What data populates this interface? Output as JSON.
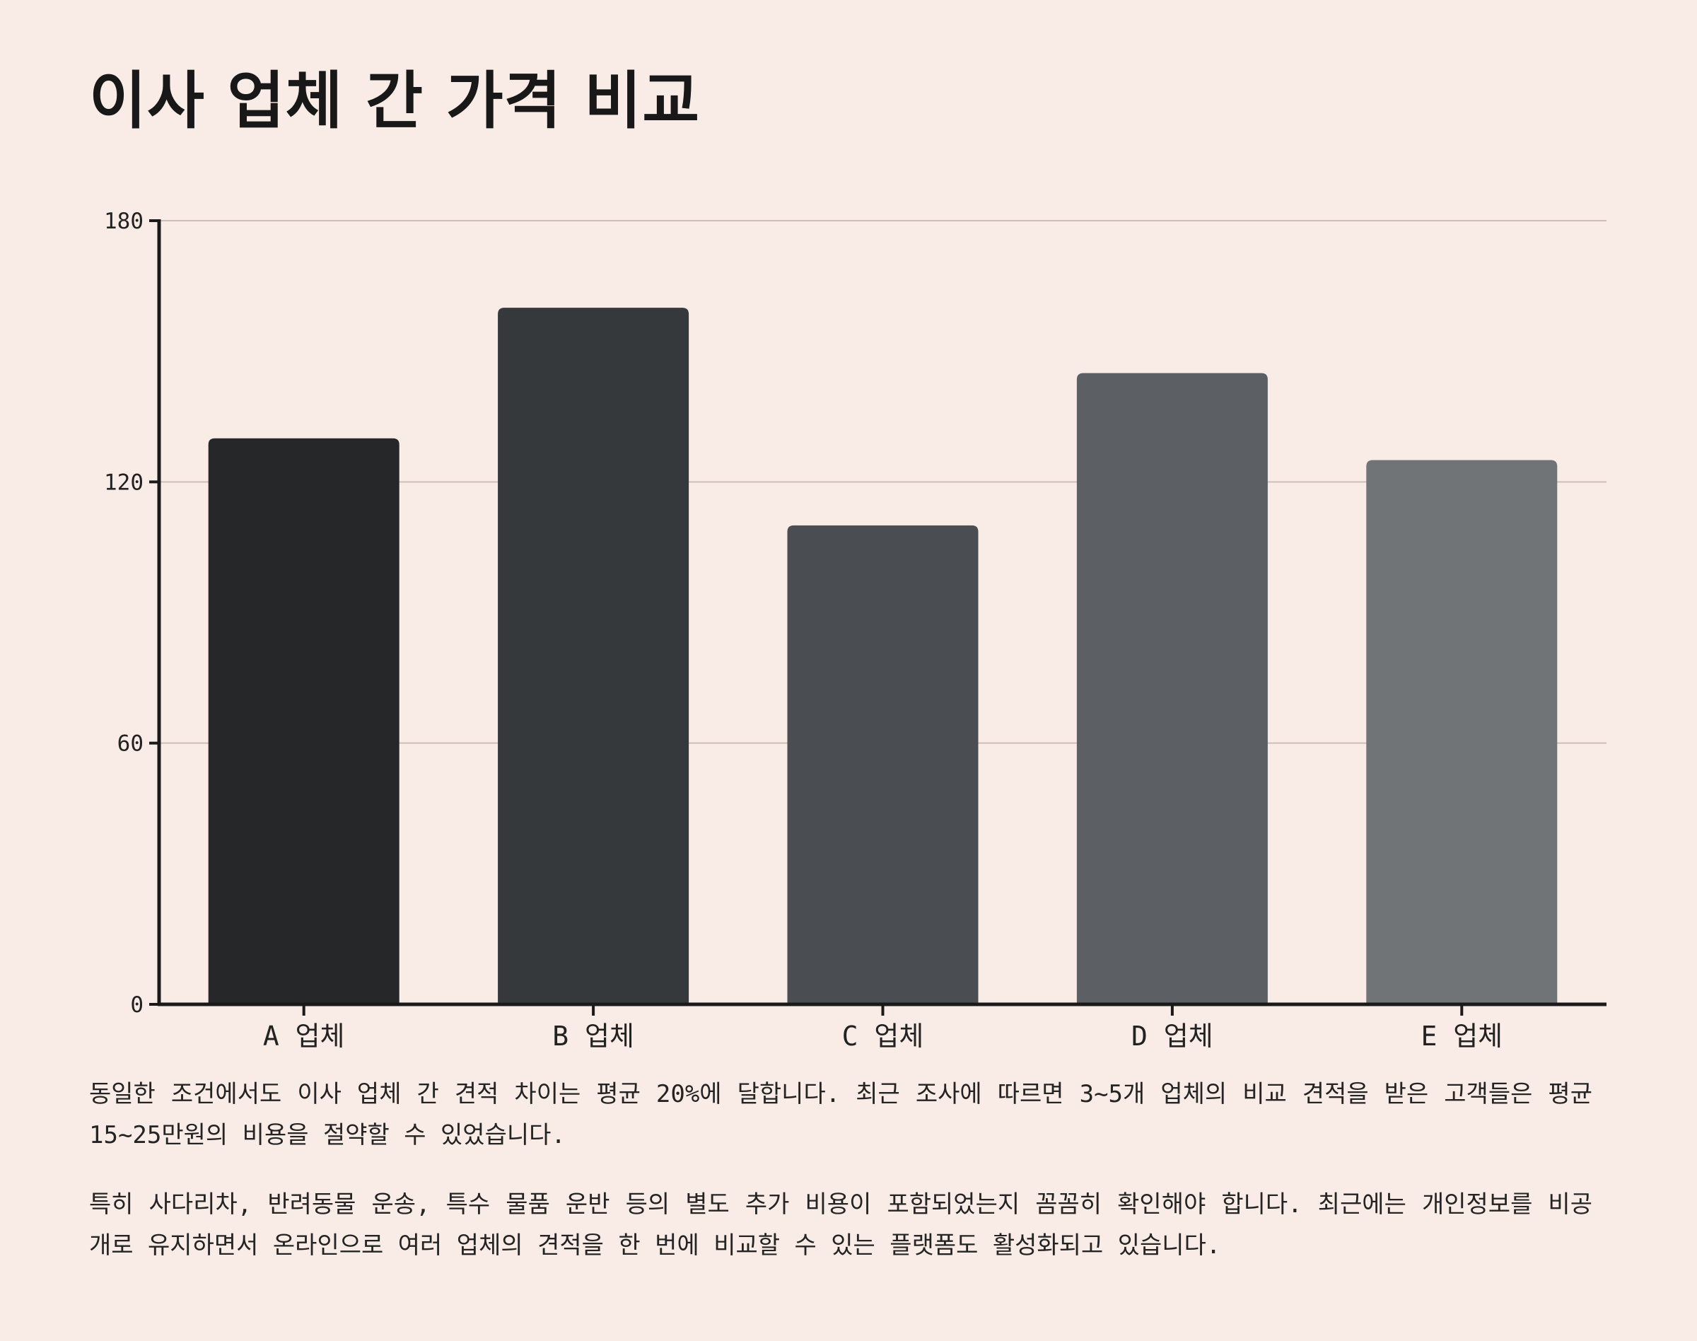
{
  "title": "이사 업체 간 가격 비교",
  "chart_data": {
    "type": "bar",
    "title": "",
    "xlabel": "",
    "ylabel": "",
    "categories": [
      "A 업체",
      "B 업체",
      "C 업체",
      "D 업체",
      "E 업체"
    ],
    "values": [
      130,
      160,
      110,
      145,
      125
    ],
    "ylim": [
      0,
      180
    ],
    "yticks": [
      0,
      60,
      120,
      180
    ],
    "grid": true,
    "legend": "none",
    "colors": [
      "#262728",
      "#36393c",
      "#4a4d51",
      "#5c5f64",
      "#707477"
    ]
  },
  "paragraphs": [
    "동일한 조건에서도 이사 업체 간 견적 차이는 평균 20%에 달합니다. 최근 조사에 따르면 3~5개 업체의 비교 견적을 받은 고객들은 평균 15~25만원의 비용을 절약할 수 있었습니다.",
    "특히 사다리차, 반려동물 운송, 특수 물품 운반 등의 별도 추가 비용이 포함되었는지 꼼꼼히 확인해야 합니다. 최근에는 개인정보를 비공개로 유지하면서 온라인으로 여러 업체의 견적을 한 번에 비교할 수 있는 플랫폼도 활성화되고 있습니다."
  ],
  "colors": {
    "background": "#f9ece6",
    "axis": "#1a1a1a",
    "grid": "#cdbfb8"
  }
}
